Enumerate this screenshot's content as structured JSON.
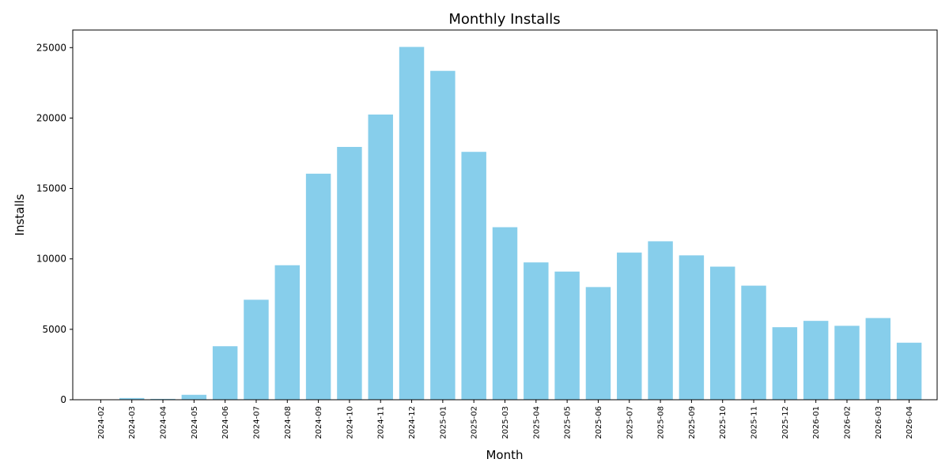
{
  "chart_data": {
    "type": "bar",
    "title": "Monthly Installs",
    "xlabel": "Month",
    "ylabel": "Installs",
    "ylim": [
      0,
      26250
    ],
    "yticks": [
      0,
      5000,
      10000,
      15000,
      20000,
      25000
    ],
    "grid": false,
    "color": "#87CEEB",
    "categories": [
      "2024-02",
      "2024-03",
      "2024-04",
      "2024-05",
      "2024-06",
      "2024-07",
      "2024-08",
      "2024-09",
      "2024-10",
      "2024-11",
      "2024-12",
      "2025-01",
      "2025-02",
      "2025-03",
      "2025-04",
      "2025-05",
      "2025-06",
      "2025-07",
      "2025-08",
      "2025-09",
      "2025-10",
      "2025-11",
      "2025-12",
      "2026-01",
      "2026-02",
      "2026-03",
      "2026-04"
    ],
    "values": [
      20,
      120,
      60,
      350,
      3800,
      7100,
      9550,
      16050,
      17950,
      20250,
      25050,
      23350,
      17600,
      12250,
      9750,
      9100,
      8000,
      10450,
      11250,
      10250,
      9450,
      8100,
      5150,
      5600,
      5250,
      5800,
      4050
    ]
  }
}
